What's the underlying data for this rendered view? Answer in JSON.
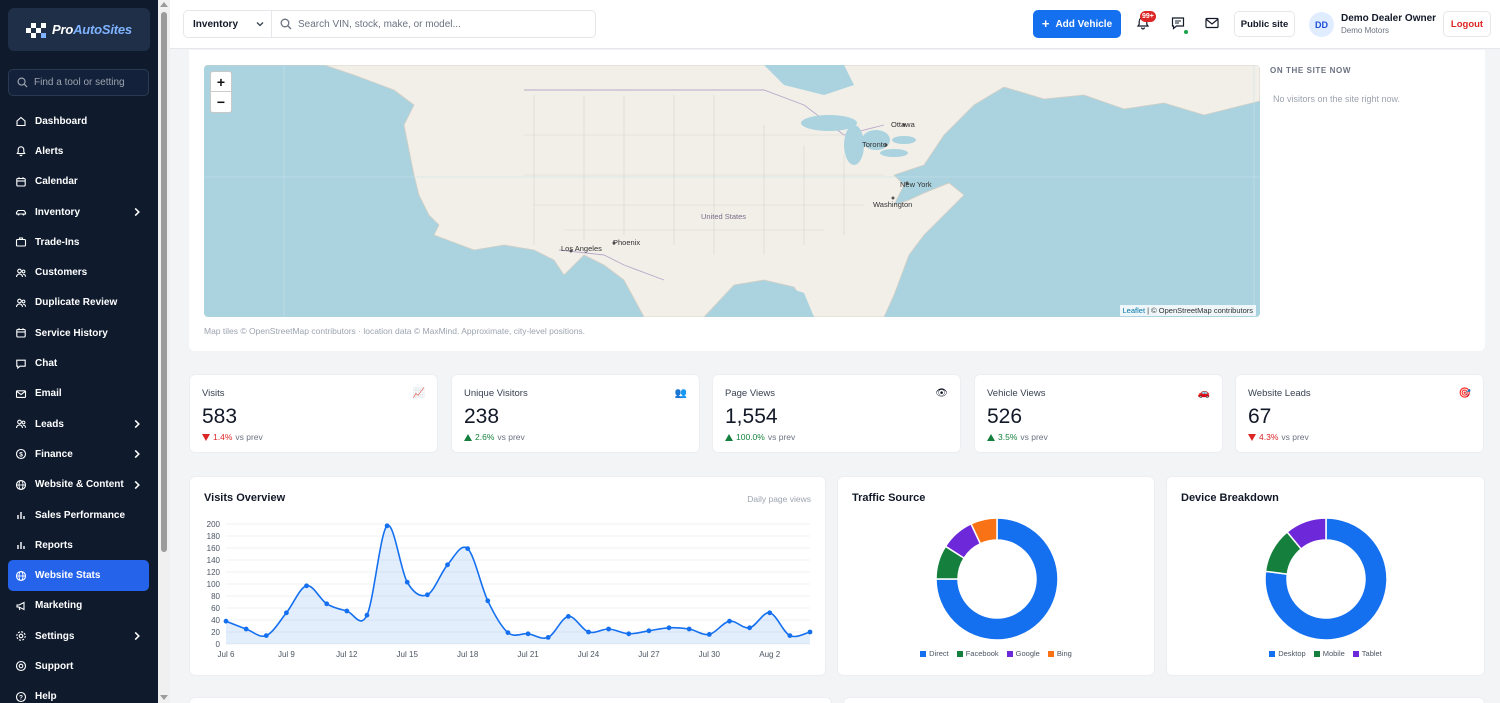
{
  "brand": {
    "name_part1": "Pro",
    "name_part2": "AutoSites"
  },
  "sidebar": {
    "search_placeholder": "Find a tool or setting",
    "items": [
      {
        "label": "Dashboard",
        "icon": "home-icon",
        "chevron": false,
        "active": false
      },
      {
        "label": "Alerts",
        "icon": "bell-icon",
        "chevron": false,
        "active": false
      },
      {
        "label": "Calendar",
        "icon": "calendar-icon",
        "chevron": false,
        "active": false
      },
      {
        "label": "Inventory",
        "icon": "car-icon",
        "chevron": true,
        "active": false
      },
      {
        "label": "Trade-Ins",
        "icon": "briefcase-icon",
        "chevron": false,
        "active": false
      },
      {
        "label": "Customers",
        "icon": "users-icon",
        "chevron": false,
        "active": false
      },
      {
        "label": "Duplicate Review",
        "icon": "users-icon",
        "chevron": false,
        "active": false
      },
      {
        "label": "Service History",
        "icon": "calendar-icon",
        "chevron": false,
        "active": false
      },
      {
        "label": "Chat",
        "icon": "chat-icon",
        "chevron": false,
        "active": false
      },
      {
        "label": "Email",
        "icon": "mail-icon",
        "chevron": false,
        "active": false
      },
      {
        "label": "Leads",
        "icon": "users-icon",
        "chevron": true,
        "active": false
      },
      {
        "label": "Finance",
        "icon": "dollar-icon",
        "chevron": true,
        "active": false
      },
      {
        "label": "Website & Content",
        "icon": "globe-icon",
        "chevron": true,
        "active": false
      },
      {
        "label": "Sales Performance",
        "icon": "bar-chart-icon",
        "chevron": false,
        "active": false
      },
      {
        "label": "Reports",
        "icon": "bar-chart-icon",
        "chevron": false,
        "active": false
      },
      {
        "label": "Website Stats",
        "icon": "globe-icon",
        "chevron": false,
        "active": true
      },
      {
        "label": "Marketing",
        "icon": "megaphone-icon",
        "chevron": false,
        "active": false
      },
      {
        "label": "Settings",
        "icon": "gear-icon",
        "chevron": true,
        "active": false
      },
      {
        "label": "Support",
        "icon": "lifebuoy-icon",
        "chevron": false,
        "active": false
      },
      {
        "label": "Help",
        "icon": "help-icon",
        "chevron": false,
        "active": false
      }
    ]
  },
  "topbar": {
    "scope_select": "Inventory",
    "search_placeholder": "Search VIN, stock, make, or model...",
    "add_vehicle": "Add Vehicle",
    "notifications_badge": "99+",
    "public_site": "Public site",
    "avatar_initials": "DD",
    "user_name": "Demo Dealer Owner",
    "user_org": "Demo Motors",
    "logout": "Logout"
  },
  "map": {
    "zoom_in": "+",
    "zoom_out": "−",
    "attribution_leaflet": "Leaflet",
    "attribution_osm": "| © OpenStreetMap contributors",
    "footer": "Map tiles © OpenStreetMap contributors · location data © MaxMind. Approximate, city-level positions.",
    "labels": [
      "Ottawa",
      "Toronto",
      "New York",
      "Washington",
      "United States",
      "Los Angeles",
      "Phoenix"
    ],
    "on_site_title": "ON THE SITE NOW",
    "on_site_empty": "No visitors on the site right now."
  },
  "kpis": [
    {
      "label": "Visits",
      "value": "583",
      "delta": "1.4%",
      "dir": "down",
      "suffix": "vs prev",
      "icon": "chart-up-icon",
      "glyph": "📈"
    },
    {
      "label": "Unique Visitors",
      "value": "238",
      "delta": "2.6%",
      "dir": "up",
      "suffix": "vs prev",
      "icon": "people-icon",
      "glyph": "👥"
    },
    {
      "label": "Page Views",
      "value": "1,554",
      "delta": "100.0%",
      "dir": "up",
      "suffix": "vs prev",
      "icon": "eye-icon",
      "glyph": "👁"
    },
    {
      "label": "Vehicle Views",
      "value": "526",
      "delta": "3.5%",
      "dir": "up",
      "suffix": "vs prev",
      "icon": "car-icon",
      "glyph": "🚗"
    },
    {
      "label": "Website Leads",
      "value": "67",
      "delta": "4.3%",
      "dir": "down",
      "suffix": "vs prev",
      "icon": "target-icon",
      "glyph": "🎯"
    }
  ],
  "visits_card": {
    "title": "Visits Overview",
    "subtitle": "Daily page views"
  },
  "traffic_card": {
    "title": "Traffic Source"
  },
  "device_card": {
    "title": "Device Breakdown"
  },
  "chart_data": [
    {
      "type": "area",
      "title": "Visits Overview",
      "x": [
        "Jul 6",
        "Jul 7",
        "Jul 8",
        "Jul 9",
        "Jul 10",
        "Jul 11",
        "Jul 12",
        "Jul 13",
        "Jul 14",
        "Jul 15",
        "Jul 16",
        "Jul 17",
        "Jul 18",
        "Jul 19",
        "Jul 20",
        "Jul 21",
        "Jul 22",
        "Jul 23",
        "Jul 24",
        "Jul 25",
        "Jul 26",
        "Jul 27",
        "Jul 28",
        "Jul 29",
        "Jul 30",
        "Jul 31",
        "Aug 1",
        "Aug 2",
        "Aug 3",
        "Aug 4"
      ],
      "x_tick_labels": [
        "Jul 6",
        "Jul 9",
        "Jul 12",
        "Jul 15",
        "Jul 18",
        "Jul 21",
        "Jul 24",
        "Jul 27",
        "Jul 30",
        "Aug 2"
      ],
      "series": [
        {
          "values": [
            38,
            25,
            14,
            52,
            97,
            67,
            55,
            48,
            197,
            103,
            82,
            132,
            159,
            72,
            19,
            17,
            11,
            46,
            20,
            25,
            17,
            22,
            27,
            25,
            16,
            38,
            27,
            52,
            14,
            20
          ]
        }
      ],
      "y_ticks": [
        0,
        20,
        40,
        60,
        80,
        100,
        120,
        140,
        160,
        180,
        200
      ],
      "ylim": [
        0,
        200
      ],
      "grid": true,
      "color": "#1570ef"
    },
    {
      "type": "pie",
      "title": "Traffic Source",
      "categories": [
        "Direct",
        "Facebook",
        "Google",
        "Bing"
      ],
      "values": [
        75,
        9,
        9,
        7
      ],
      "colors": [
        "#1570ef",
        "#15803d",
        "#6d28d9",
        "#f97316"
      ],
      "legend": "bottom"
    },
    {
      "type": "pie",
      "title": "Device Breakdown",
      "categories": [
        "Desktop",
        "Mobile",
        "Tablet"
      ],
      "values": [
        77,
        12,
        11
      ],
      "colors": [
        "#1570ef",
        "#15803d",
        "#6d28d9"
      ],
      "legend": "bottom"
    }
  ]
}
